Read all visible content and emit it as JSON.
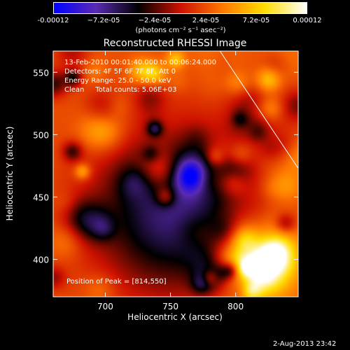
{
  "colorbar": {
    "ticks": [
      "-0.00012",
      "−7.2e-05",
      "−2.4e-05",
      "2.4e-05",
      "7.2e-05",
      "0.00012"
    ],
    "units": "(photons cm⁻² s⁻¹ asec⁻²)",
    "range": [
      -0.00012,
      0.00012
    ],
    "colors": [
      "#0000ff",
      "#5a2ab4",
      "#000000",
      "#cc1100",
      "#ff7700",
      "#ffdd00",
      "#ffffff"
    ]
  },
  "chart_data": {
    "type": "heatmap",
    "title": "Reconstructed RHESSI Image",
    "xlabel": "Heliocentric X (arcsec)",
    "ylabel": "Heliocentric Y (arcsec)",
    "xlim": [
      660,
      848
    ],
    "ylim": [
      370,
      567
    ],
    "x_ticks": [
      700,
      750,
      800
    ],
    "y_ticks": [
      400,
      450,
      500,
      550
    ],
    "peak": [
      814,
      550
    ],
    "limb_line": [
      [
        788,
        567
      ],
      [
        848,
        473
      ]
    ]
  },
  "annotations": {
    "time": "13-Feb-2010 00:01:40.000 to 00:06:24.000",
    "detectors": "Detectors: 4F 5F 6F 7F 8F, Att 0",
    "energy": "Energy Range: 25.0 - 50.0 keV",
    "clean": "Clean     Total counts: 5.06E+03",
    "peak_text": "Position of Peak = [814,550]"
  },
  "footer": {
    "date": "2-Aug-2013 23:42"
  }
}
